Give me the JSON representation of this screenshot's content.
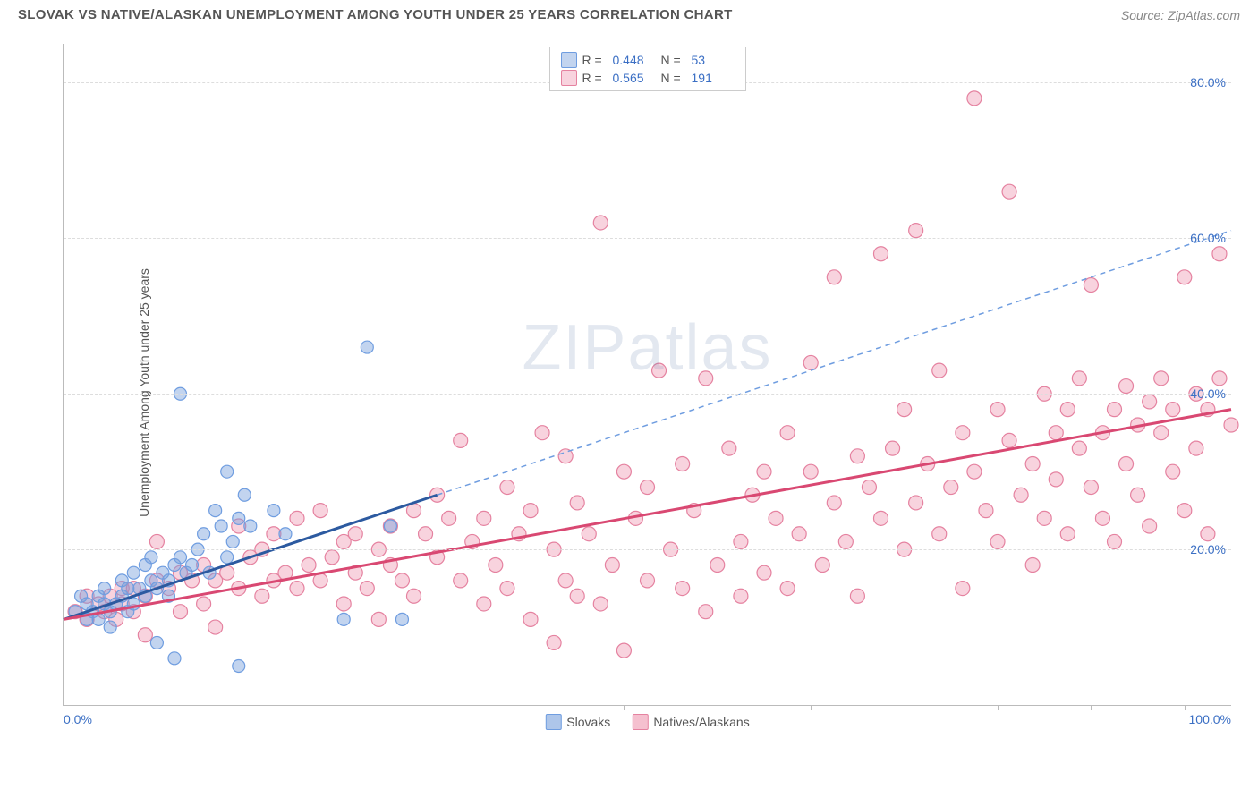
{
  "header": {
    "title": "SLOVAK VS NATIVE/ALASKAN UNEMPLOYMENT AMONG YOUTH UNDER 25 YEARS CORRELATION CHART",
    "source": "Source: ZipAtlas.com"
  },
  "watermark": {
    "zip": "ZIP",
    "atlas": "atlas"
  },
  "chart": {
    "type": "scatter",
    "y_axis_label": "Unemployment Among Youth under 25 years",
    "xlim": [
      0,
      100
    ],
    "ylim": [
      0,
      85
    ],
    "x_ticks": [
      0,
      100
    ],
    "x_tick_labels": [
      "0.0%",
      "100.0%"
    ],
    "x_minor_ticks": [
      8,
      16,
      24,
      32,
      40,
      48,
      56,
      64,
      72,
      80,
      88,
      96
    ],
    "y_ticks": [
      20,
      40,
      60,
      80
    ],
    "y_tick_labels": [
      "20.0%",
      "40.0%",
      "60.0%",
      "80.0%"
    ],
    "background_color": "#ffffff",
    "grid_color": "#dddddd",
    "axis_color": "#bbbbbb",
    "tick_label_color": "#3b6fc4",
    "series": [
      {
        "name": "Slovaks",
        "color_fill": "rgba(120,160,220,0.45)",
        "color_stroke": "#6f9de0",
        "r_value": "0.448",
        "n_value": "53",
        "trend": {
          "x1": 0,
          "y1": 11,
          "x2": 32,
          "y2": 27,
          "dash_x2": 100,
          "dash_y2": 61,
          "solid_color": "#2c5aa0",
          "solid_width": 3,
          "dash_color": "#6f9de0"
        },
        "marker_radius": 7,
        "points": [
          [
            1,
            12
          ],
          [
            1.5,
            14
          ],
          [
            2,
            11
          ],
          [
            2,
            13
          ],
          [
            2.5,
            12
          ],
          [
            3,
            14
          ],
          [
            3,
            11
          ],
          [
            3.5,
            13
          ],
          [
            3.5,
            15
          ],
          [
            4,
            12
          ],
          [
            4,
            10
          ],
          [
            4.5,
            13
          ],
          [
            5,
            14
          ],
          [
            5,
            16
          ],
          [
            5.5,
            12
          ],
          [
            5.5,
            15
          ],
          [
            6,
            13
          ],
          [
            6,
            17
          ],
          [
            6.5,
            15
          ],
          [
            7,
            18
          ],
          [
            7,
            14
          ],
          [
            7.5,
            16
          ],
          [
            7.5,
            19
          ],
          [
            8,
            15
          ],
          [
            8,
            8
          ],
          [
            8.5,
            17
          ],
          [
            9,
            16
          ],
          [
            9,
            14
          ],
          [
            9.5,
            18
          ],
          [
            9.5,
            6
          ],
          [
            10,
            19
          ],
          [
            10,
            40
          ],
          [
            10.5,
            17
          ],
          [
            11,
            18
          ],
          [
            11.5,
            20
          ],
          [
            12,
            22
          ],
          [
            12.5,
            17
          ],
          [
            13,
            25
          ],
          [
            13.5,
            23
          ],
          [
            14,
            19
          ],
          [
            14,
            30
          ],
          [
            14.5,
            21
          ],
          [
            15,
            24
          ],
          [
            15,
            5
          ],
          [
            15.5,
            27
          ],
          [
            16,
            23
          ],
          [
            18,
            25
          ],
          [
            19,
            22
          ],
          [
            24,
            11
          ],
          [
            26,
            46
          ],
          [
            28,
            23
          ],
          [
            29,
            11
          ]
        ]
      },
      {
        "name": "Natives/Alaskans",
        "color_fill": "rgba(235,130,160,0.35)",
        "color_stroke": "#e582a0",
        "r_value": "0.565",
        "n_value": "191",
        "trend": {
          "x1": 0,
          "y1": 11,
          "x2": 100,
          "y2": 38,
          "solid_color": "#d94872",
          "solid_width": 3
        },
        "marker_radius": 8,
        "points": [
          [
            1,
            12
          ],
          [
            2,
            11
          ],
          [
            2,
            14
          ],
          [
            3,
            13
          ],
          [
            3.5,
            12
          ],
          [
            4,
            14
          ],
          [
            4.5,
            11
          ],
          [
            5,
            15
          ],
          [
            5,
            13
          ],
          [
            6,
            12
          ],
          [
            6,
            15
          ],
          [
            7,
            14
          ],
          [
            7,
            9
          ],
          [
            8,
            16
          ],
          [
            8,
            21
          ],
          [
            9,
            15
          ],
          [
            10,
            17
          ],
          [
            10,
            12
          ],
          [
            11,
            16
          ],
          [
            12,
            18
          ],
          [
            12,
            13
          ],
          [
            13,
            16
          ],
          [
            13,
            10
          ],
          [
            14,
            17
          ],
          [
            15,
            15
          ],
          [
            15,
            23
          ],
          [
            16,
            19
          ],
          [
            17,
            20
          ],
          [
            17,
            14
          ],
          [
            18,
            22
          ],
          [
            18,
            16
          ],
          [
            19,
            17
          ],
          [
            20,
            24
          ],
          [
            20,
            15
          ],
          [
            21,
            18
          ],
          [
            22,
            16
          ],
          [
            22,
            25
          ],
          [
            23,
            19
          ],
          [
            24,
            21
          ],
          [
            24,
            13
          ],
          [
            25,
            22
          ],
          [
            25,
            17
          ],
          [
            26,
            15
          ],
          [
            27,
            20
          ],
          [
            27,
            11
          ],
          [
            28,
            23
          ],
          [
            28,
            18
          ],
          [
            29,
            16
          ],
          [
            30,
            25
          ],
          [
            30,
            14
          ],
          [
            31,
            22
          ],
          [
            32,
            19
          ],
          [
            32,
            27
          ],
          [
            33,
            24
          ],
          [
            34,
            16
          ],
          [
            34,
            34
          ],
          [
            35,
            21
          ],
          [
            36,
            24
          ],
          [
            36,
            13
          ],
          [
            37,
            18
          ],
          [
            38,
            28
          ],
          [
            38,
            15
          ],
          [
            39,
            22
          ],
          [
            40,
            25
          ],
          [
            40,
            11
          ],
          [
            41,
            35
          ],
          [
            42,
            20
          ],
          [
            42,
            8
          ],
          [
            43,
            32
          ],
          [
            43,
            16
          ],
          [
            44,
            14
          ],
          [
            44,
            26
          ],
          [
            45,
            22
          ],
          [
            46,
            13
          ],
          [
            46,
            62
          ],
          [
            47,
            18
          ],
          [
            48,
            30
          ],
          [
            48,
            7
          ],
          [
            49,
            24
          ],
          [
            50,
            16
          ],
          [
            50,
            28
          ],
          [
            51,
            43
          ],
          [
            52,
            20
          ],
          [
            53,
            15
          ],
          [
            53,
            31
          ],
          [
            54,
            25
          ],
          [
            55,
            42
          ],
          [
            55,
            12
          ],
          [
            56,
            18
          ],
          [
            57,
            33
          ],
          [
            58,
            21
          ],
          [
            58,
            14
          ],
          [
            59,
            27
          ],
          [
            60,
            30
          ],
          [
            60,
            17
          ],
          [
            61,
            24
          ],
          [
            62,
            35
          ],
          [
            62,
            15
          ],
          [
            63,
            22
          ],
          [
            64,
            30
          ],
          [
            64,
            44
          ],
          [
            65,
            18
          ],
          [
            66,
            26
          ],
          [
            66,
            55
          ],
          [
            67,
            21
          ],
          [
            68,
            32
          ],
          [
            68,
            14
          ],
          [
            69,
            28
          ],
          [
            70,
            24
          ],
          [
            70,
            58
          ],
          [
            71,
            33
          ],
          [
            72,
            20
          ],
          [
            72,
            38
          ],
          [
            73,
            61
          ],
          [
            73,
            26
          ],
          [
            74,
            31
          ],
          [
            75,
            22
          ],
          [
            75,
            43
          ],
          [
            76,
            28
          ],
          [
            77,
            35
          ],
          [
            77,
            15
          ],
          [
            78,
            30
          ],
          [
            78,
            78
          ],
          [
            79,
            25
          ],
          [
            80,
            38
          ],
          [
            80,
            21
          ],
          [
            81,
            34
          ],
          [
            81,
            66
          ],
          [
            82,
            27
          ],
          [
            83,
            31
          ],
          [
            83,
            18
          ],
          [
            84,
            40
          ],
          [
            84,
            24
          ],
          [
            85,
            35
          ],
          [
            85,
            29
          ],
          [
            86,
            22
          ],
          [
            86,
            38
          ],
          [
            87,
            33
          ],
          [
            87,
            42
          ],
          [
            88,
            28
          ],
          [
            88,
            54
          ],
          [
            89,
            35
          ],
          [
            89,
            24
          ],
          [
            90,
            38
          ],
          [
            90,
            21
          ],
          [
            91,
            31
          ],
          [
            91,
            41
          ],
          [
            92,
            36
          ],
          [
            92,
            27
          ],
          [
            93,
            39
          ],
          [
            93,
            23
          ],
          [
            94,
            35
          ],
          [
            94,
            42
          ],
          [
            95,
            30
          ],
          [
            95,
            38
          ],
          [
            96,
            25
          ],
          [
            96,
            55
          ],
          [
            97,
            40
          ],
          [
            97,
            33
          ],
          [
            98,
            38
          ],
          [
            98,
            22
          ],
          [
            99,
            42
          ],
          [
            99,
            58
          ],
          [
            100,
            36
          ]
        ]
      }
    ],
    "legend_bottom": [
      {
        "label": "Slovaks",
        "fill": "rgba(120,160,220,0.6)",
        "stroke": "#6f9de0"
      },
      {
        "label": "Natives/Alaskans",
        "fill": "rgba(235,130,160,0.5)",
        "stroke": "#e582a0"
      }
    ]
  }
}
